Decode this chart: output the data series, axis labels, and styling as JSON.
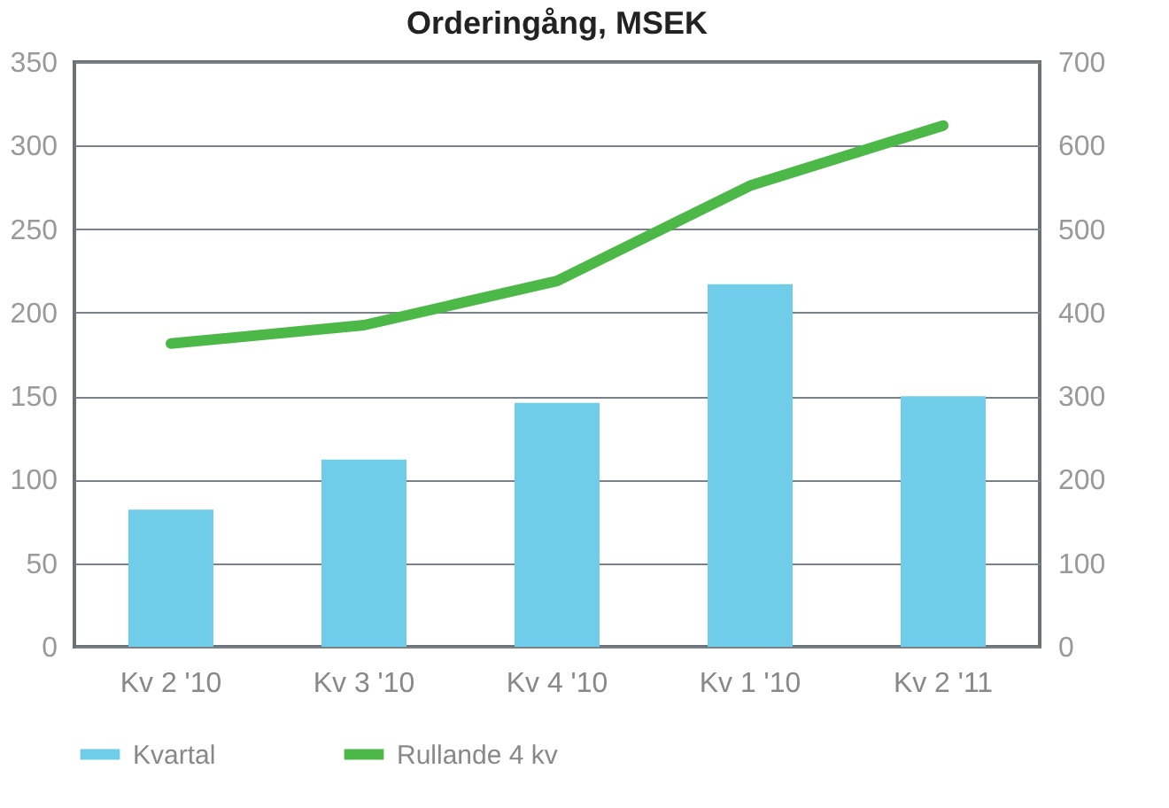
{
  "chart_data": {
    "type": "bar",
    "title": "Orderingång, MSEK",
    "categories": [
      "Kv 2 '10",
      "Kv 3 '10",
      "Kv 4 '10",
      "Kv 1 '10",
      "Kv 2 '11"
    ],
    "series": [
      {
        "name": "Kvartal",
        "color": "#6fcde9",
        "values": [
          82,
          112,
          146,
          217,
          150
        ]
      },
      {
        "name": "Rullande 4 kv",
        "type": "line",
        "axis": "y2",
        "color": "#4cb848",
        "values": [
          363,
          385,
          438,
          552,
          624
        ]
      }
    ],
    "ylim": [
      0,
      350
    ],
    "yticks": [
      0,
      50,
      100,
      150,
      200,
      250,
      300,
      350
    ],
    "y2lim": [
      0,
      700
    ],
    "y2ticks": [
      0,
      100,
      200,
      300,
      400,
      500,
      600,
      700
    ],
    "grid": "y",
    "legend": "bottom"
  }
}
